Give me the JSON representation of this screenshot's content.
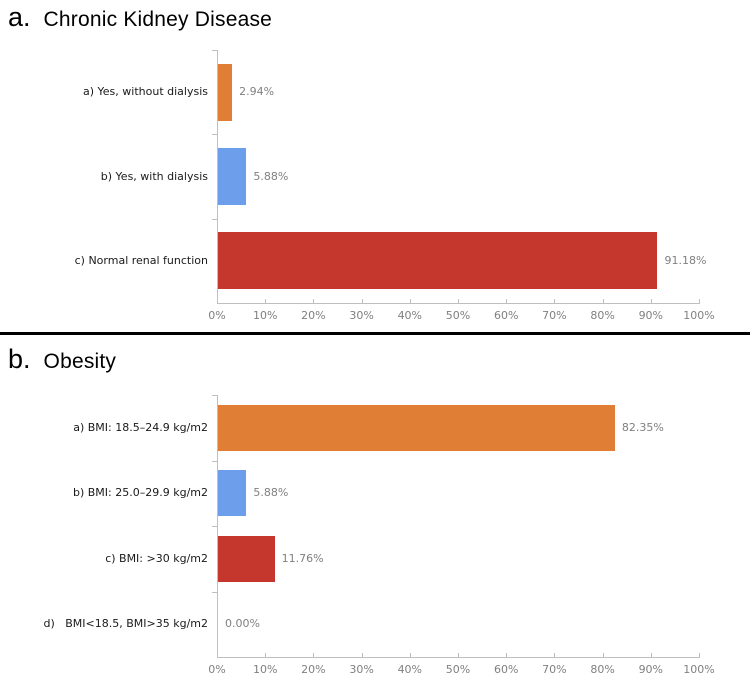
{
  "figure": {
    "section_a_letter": "a.",
    "section_a_title": "Chronic Kidney Disease",
    "section_b_letter": "b.",
    "section_b_title": "Obesity"
  },
  "chart_data": [
    {
      "type": "bar",
      "orientation": "horizontal",
      "index_label": "a.",
      "title": "Chronic Kidney Disease",
      "categories": [
        "a) Yes, without dialysis",
        "b) Yes, with dialysis",
        "c) Normal renal function"
      ],
      "values": [
        2.94,
        5.88,
        91.18
      ],
      "value_labels": [
        "2.94%",
        "5.88%",
        "91.18%"
      ],
      "bar_colors": [
        "#E07E35",
        "#6D9EEB",
        "#C5362C"
      ],
      "xlim": [
        0,
        100
      ],
      "x_tick_labels": [
        "0%",
        "10%",
        "20%",
        "30%",
        "40%",
        "50%",
        "60%",
        "70%",
        "80%",
        "90%",
        "100%"
      ],
      "grid": false,
      "legend": "none"
    },
    {
      "type": "bar",
      "orientation": "horizontal",
      "index_label": "b.",
      "title": "Obesity",
      "categories": [
        "a) BMI: 18.5–24.9 kg/m2",
        "b) BMI: 25.0–29.9 kg/m2",
        "c) BMI: >30 kg/m2",
        "d)   BMI<18.5, BMI>35 kg/m2"
      ],
      "values": [
        82.35,
        5.88,
        11.76,
        0.0
      ],
      "value_labels": [
        "82.35%",
        "5.88%",
        "11.76%",
        "0.00%"
      ],
      "bar_colors": [
        "#E07E35",
        "#6D9EEB",
        "#C5362C",
        "#C5362C"
      ],
      "xlim": [
        0,
        100
      ],
      "x_tick_labels": [
        "0%",
        "10%",
        "20%",
        "30%",
        "40%",
        "50%",
        "60%",
        "70%",
        "80%",
        "90%",
        "100%"
      ],
      "grid": false,
      "legend": "none"
    }
  ],
  "colors": {
    "axis_line": "#bfbfbf",
    "tick_label": "#808080",
    "value_label": "#808080",
    "category_label": "#1a1a1a",
    "divider": "#000000",
    "orange": "#E07E35",
    "blue": "#6D9EEB",
    "red": "#C5362C"
  }
}
